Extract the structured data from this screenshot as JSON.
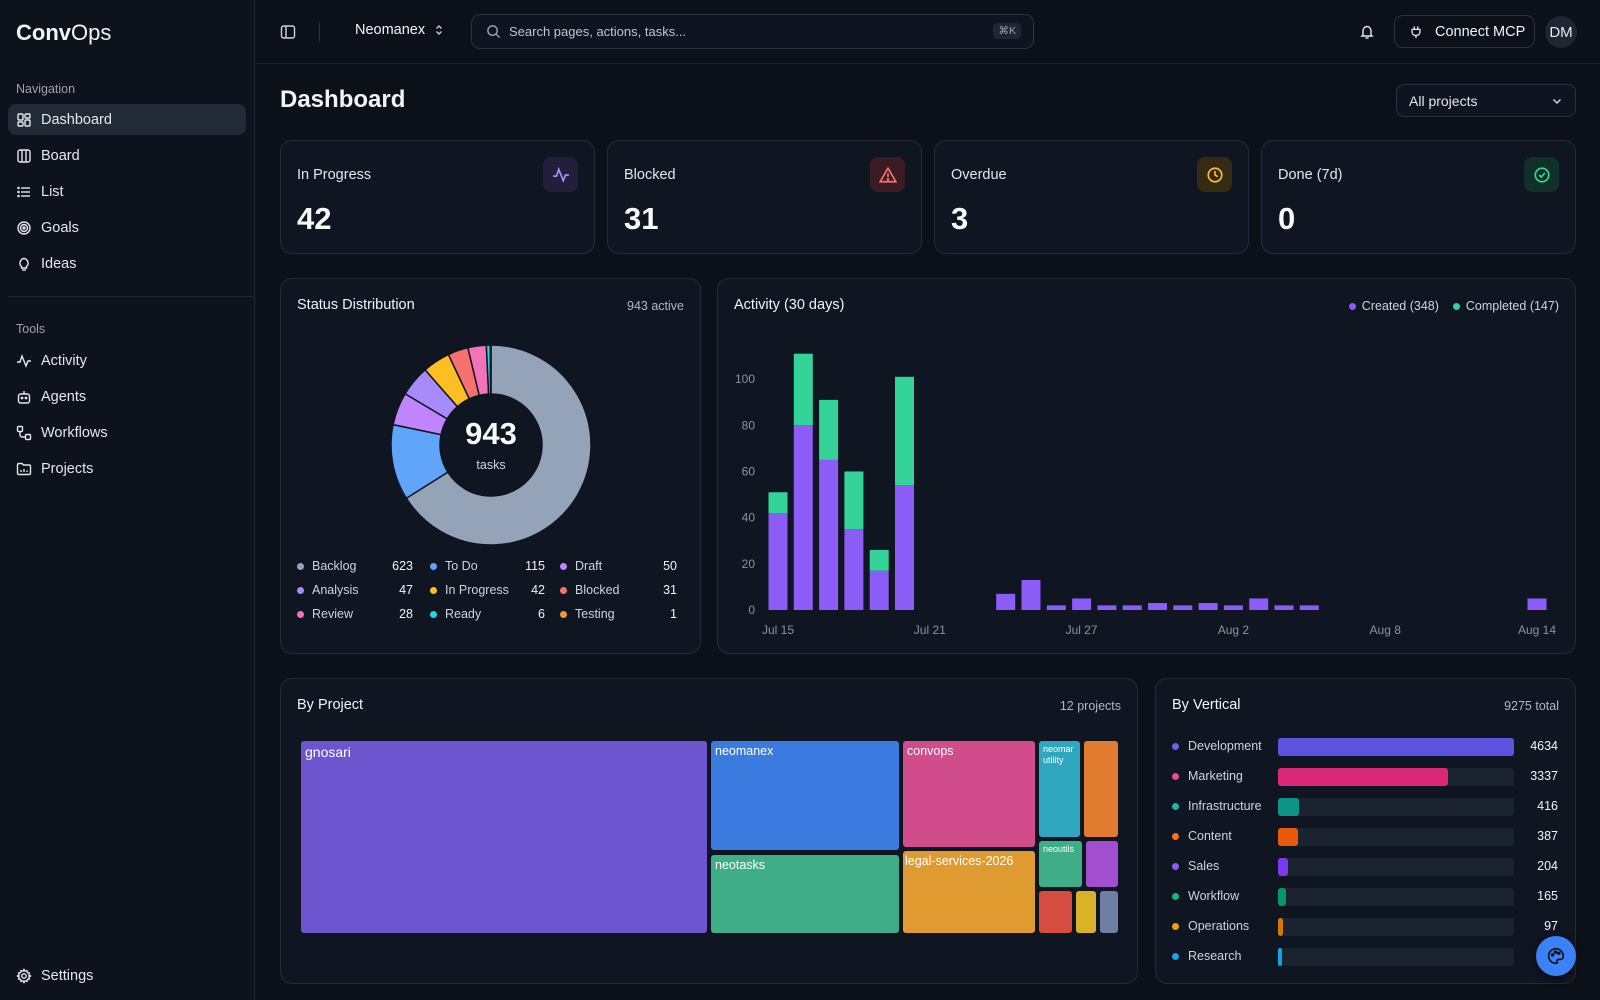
{
  "app": {
    "logo_bold": "Conv",
    "logo_rest": "Ops"
  },
  "sidebar": {
    "nav_heading": "Navigation",
    "nav": [
      {
        "label": "Dashboard",
        "icon": "dashboard-icon",
        "active": true
      },
      {
        "label": "Board",
        "icon": "board-icon"
      },
      {
        "label": "List",
        "icon": "list-icon"
      },
      {
        "label": "Goals",
        "icon": "target-icon"
      },
      {
        "label": "Ideas",
        "icon": "lightbulb-icon"
      }
    ],
    "tools_heading": "Tools",
    "tools": [
      {
        "label": "Activity",
        "icon": "activity-icon"
      },
      {
        "label": "Agents",
        "icon": "bot-icon"
      },
      {
        "label": "Workflows",
        "icon": "workflow-icon"
      },
      {
        "label": "Projects",
        "icon": "folder-icon"
      }
    ],
    "settings": "Settings"
  },
  "header": {
    "workspace": "Neomanex",
    "search_placeholder": "Search pages, actions, tasks...",
    "search_shortcut": "⌘K",
    "connect": "Connect MCP",
    "avatar": "DM"
  },
  "page": {
    "title": "Dashboard",
    "project_filter": "All projects"
  },
  "stats": [
    {
      "label": "In Progress",
      "value": "42",
      "icon": "activity-icon",
      "color": "#a78bfa",
      "bg": "#231f3a"
    },
    {
      "label": "Blocked",
      "value": "31",
      "icon": "alert-triangle-icon",
      "color": "#f87171",
      "bg": "#3a1d24"
    },
    {
      "label": "Overdue",
      "value": "3",
      "icon": "clock-icon",
      "color": "#fbbf24",
      "bg": "#352a12"
    },
    {
      "label": "Done (7d)",
      "value": "0",
      "icon": "check-circle-icon",
      "color": "#34d399",
      "bg": "#10302a"
    }
  ],
  "status": {
    "title": "Status Distribution",
    "meta": "943 active",
    "center_value": "943",
    "center_label": "tasks",
    "items": [
      {
        "label": "Backlog",
        "value": 623,
        "color": "#94a3b8"
      },
      {
        "label": "To Do",
        "value": 115,
        "color": "#60a5fa"
      },
      {
        "label": "Draft",
        "value": 50,
        "color": "#c084fc"
      },
      {
        "label": "Analysis",
        "value": 47,
        "color": "#a78bfa"
      },
      {
        "label": "In Progress",
        "value": 42,
        "color": "#fbbf24"
      },
      {
        "label": "Blocked",
        "value": 31,
        "color": "#f87171"
      },
      {
        "label": "Review",
        "value": 28,
        "color": "#f472b6"
      },
      {
        "label": "Ready",
        "value": 6,
        "color": "#22d3ee"
      },
      {
        "label": "Testing",
        "value": 1,
        "color": "#fb923c"
      }
    ]
  },
  "activity": {
    "title": "Activity (30 days)",
    "legend": [
      {
        "label": "Created (348)",
        "color": "#8b5cf6"
      },
      {
        "label": "Completed (147)",
        "color": "#34d399"
      }
    ]
  },
  "chart_data": {
    "type": "bar",
    "stacked": true,
    "categories": [
      "Jul 15",
      "Jul 16",
      "Jul 17",
      "Jul 18",
      "Jul 19",
      "Jul 20",
      "Jul 21",
      "Jul 22",
      "Jul 23",
      "Jul 24",
      "Jul 25",
      "Jul 26",
      "Jul 27",
      "Jul 28",
      "Jul 29",
      "Jul 30",
      "Jul 31",
      "Aug 1",
      "Aug 2",
      "Aug 3",
      "Aug 4",
      "Aug 5",
      "Aug 6",
      "Aug 7",
      "Aug 8",
      "Aug 9",
      "Aug 10",
      "Aug 11",
      "Aug 12",
      "Aug 13",
      "Aug 14"
    ],
    "series": [
      {
        "name": "Created",
        "color": "#8b5cf6",
        "values": [
          42,
          80,
          65,
          35,
          17,
          54,
          0,
          0,
          0,
          7,
          13,
          2,
          5,
          2,
          2,
          3,
          2,
          3,
          2,
          5,
          2,
          2,
          0,
          0,
          0,
          0,
          0,
          0,
          0,
          0,
          5
        ]
      },
      {
        "name": "Completed",
        "color": "#34d399",
        "values": [
          9,
          31,
          26,
          25,
          9,
          47,
          0,
          0,
          0,
          0,
          0,
          0,
          0,
          0,
          0,
          0,
          0,
          0,
          0,
          0,
          0,
          0,
          0,
          0,
          0,
          0,
          0,
          0,
          0,
          0,
          0
        ]
      }
    ],
    "x_ticks": [
      "Jul 15",
      "Jul 21",
      "Jul 27",
      "Aug 2",
      "Aug 8",
      "Aug 14"
    ],
    "y_ticks": [
      0,
      20,
      40,
      60,
      80,
      100
    ],
    "ylim": [
      0,
      110
    ],
    "grid": false
  },
  "by_project": {
    "title": "By Project",
    "meta": "12 projects",
    "labels": [
      "gnosari",
      "neomanex",
      "convops",
      "neomar utility",
      "neotasks",
      "legal-services-2026",
      "neoutils"
    ]
  },
  "by_vertical": {
    "title": "By Vertical",
    "meta": "9275 total",
    "max": 4634,
    "items": [
      {
        "label": "Development",
        "value": 4634,
        "color": "#5b52e0",
        "dot": "#6366f1"
      },
      {
        "label": "Marketing",
        "value": 3337,
        "color": "#db2777",
        "dot": "#ec4899"
      },
      {
        "label": "Infrastructure",
        "value": 416,
        "color": "#0d9488",
        "dot": "#14b8a6"
      },
      {
        "label": "Content",
        "value": 387,
        "color": "#ea580c",
        "dot": "#f97316"
      },
      {
        "label": "Sales",
        "value": 204,
        "color": "#7c3aed",
        "dot": "#8b5cf6"
      },
      {
        "label": "Workflow",
        "value": 165,
        "color": "#059669",
        "dot": "#10b981"
      },
      {
        "label": "Operations",
        "value": 97,
        "color": "#d97706",
        "dot": "#f59e0b"
      },
      {
        "label": "Research",
        "value": 0,
        "color": "#0ea5e9",
        "dot": "#0ea5e9"
      }
    ]
  }
}
